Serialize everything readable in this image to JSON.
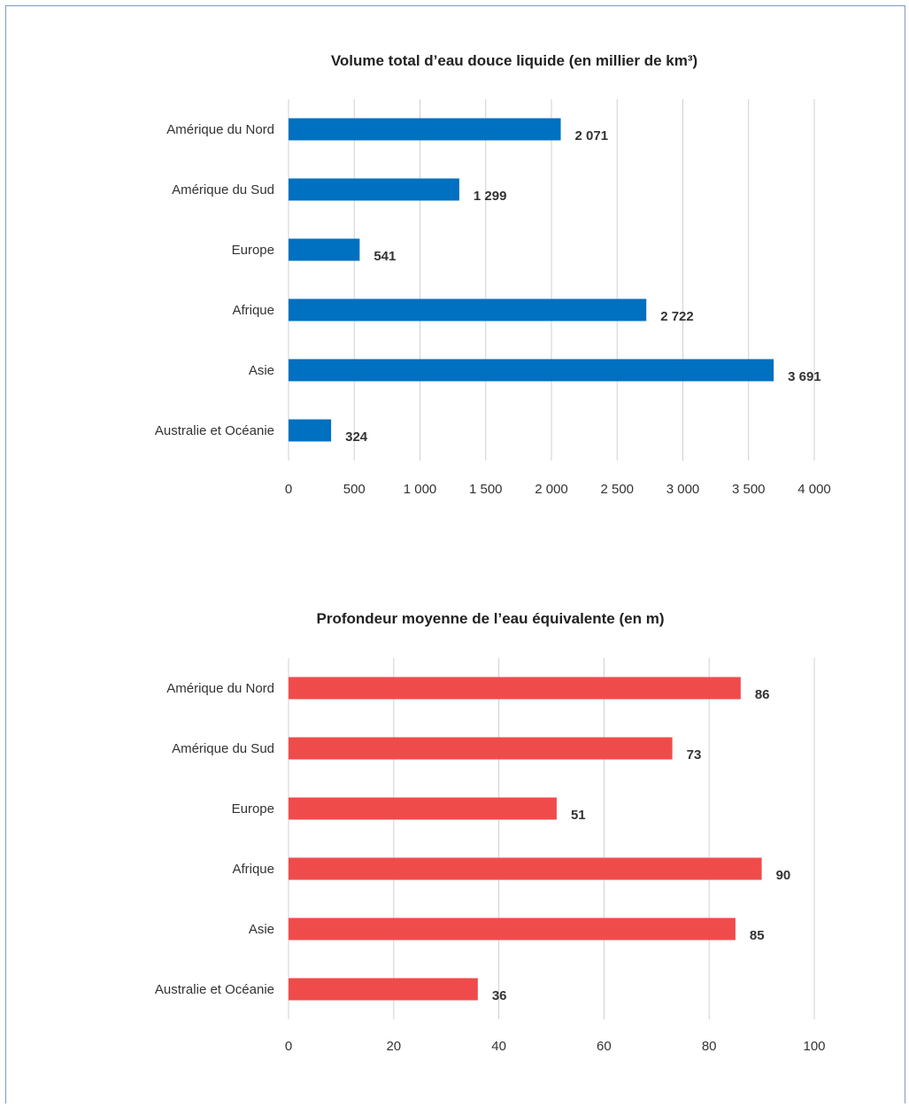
{
  "chart_data": [
    {
      "type": "bar",
      "orientation": "horizontal",
      "title": "Volume total d’eau douce liquide (en millier de km³)",
      "categories": [
        "Amérique du Nord",
        "Amérique du Sud",
        "Europe",
        "Afrique",
        "Asie",
        "Australie et Océanie"
      ],
      "values": [
        2071,
        1299,
        541,
        2722,
        3691,
        324
      ],
      "value_labels": [
        "2 071",
        "1 299",
        "541",
        "2 722",
        "3 691",
        "324"
      ],
      "xlim": [
        0,
        4000
      ],
      "ticks": [
        0,
        500,
        1000,
        1500,
        2000,
        2500,
        3000,
        3500,
        4000
      ],
      "tick_labels": [
        "0",
        "500",
        "1 000",
        "1 500",
        "2 000",
        "2 500",
        "3 000",
        "3 500",
        "4 000"
      ],
      "grid": true,
      "color": "#0070c0"
    },
    {
      "type": "bar",
      "orientation": "horizontal",
      "title": "Profondeur moyenne de l’eau équivalente (en m)",
      "categories": [
        "Amérique du Nord",
        "Amérique du Sud",
        "Europe",
        "Afrique",
        "Asie",
        "Australie et Océanie"
      ],
      "values": [
        86,
        73,
        51,
        90,
        85,
        36
      ],
      "value_labels": [
        "86",
        "73",
        "51",
        "90",
        "85",
        "36"
      ],
      "xlim": [
        0,
        100
      ],
      "ticks": [
        0,
        20,
        40,
        60,
        80,
        100
      ],
      "tick_labels": [
        "0",
        "20",
        "40",
        "60",
        "80",
        "100"
      ],
      "grid": true,
      "color": "#f04b4b"
    }
  ]
}
